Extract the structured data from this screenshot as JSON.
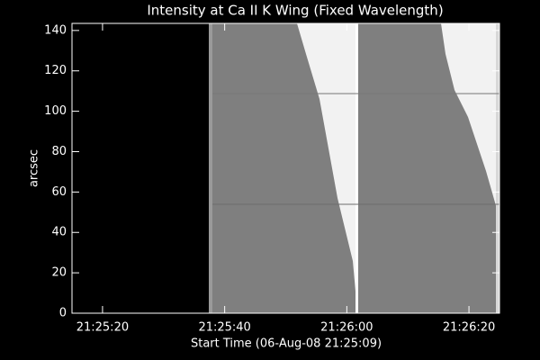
{
  "chart_data": {
    "type": "image",
    "title": "Intensity at Ca II K Wing (Fixed Wavelength)",
    "xlabel": "Start Time (06-Aug-08 21:25:09)",
    "ylabel": "arcsec",
    "xlim": [
      15,
      85
    ],
    "xticks": [
      {
        "value": 20,
        "label": "21:25:20"
      },
      {
        "value": 40,
        "label": "21:25:40"
      },
      {
        "value": 60,
        "label": "21:26:00"
      },
      {
        "value": 80,
        "label": "21:26:20"
      }
    ],
    "ylim": [
      0,
      143.5
    ],
    "yticks": [
      0,
      20,
      40,
      60,
      80,
      100,
      120,
      140
    ]
  }
}
